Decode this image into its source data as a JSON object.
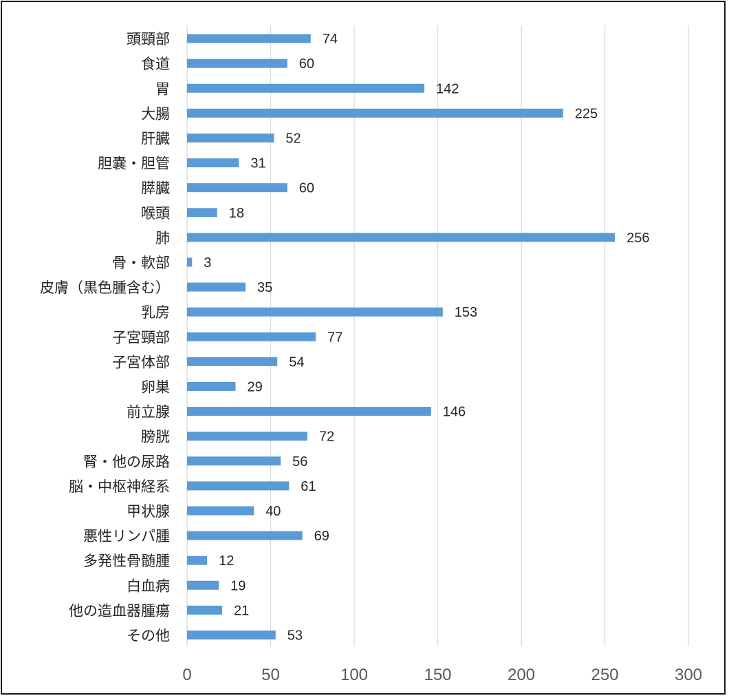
{
  "chart_data": {
    "type": "bar",
    "orientation": "horizontal",
    "categories": [
      "頭頸部",
      "食道",
      "胃",
      "大腸",
      "肝臓",
      "胆嚢・胆管",
      "膵臓",
      "喉頭",
      "肺",
      "骨・軟部",
      "皮膚（黒色腫含む）",
      "乳房",
      "子宮頸部",
      "子宮体部",
      "卵巣",
      "前立腺",
      "膀胱",
      "腎・他の尿路",
      "脳・中枢神経系",
      "甲状腺",
      "悪性リンパ腫",
      "多発性骨髄腫",
      "白血病",
      "他の造血器腫瘍",
      "その他"
    ],
    "values": [
      74,
      60,
      142,
      225,
      52,
      31,
      60,
      18,
      256,
      3,
      35,
      153,
      77,
      54,
      29,
      146,
      72,
      56,
      61,
      40,
      69,
      12,
      19,
      21,
      53
    ],
    "xlim": [
      0,
      300
    ],
    "xticks": [
      0,
      50,
      100,
      150,
      200,
      250,
      300
    ],
    "grid": "vertical",
    "data_labels": true,
    "title": "",
    "xlabel": "",
    "ylabel": "",
    "colors": {
      "bar": "#5b9bd5",
      "grid": "#d9d9d9",
      "frame": "#1a1a1a"
    }
  }
}
